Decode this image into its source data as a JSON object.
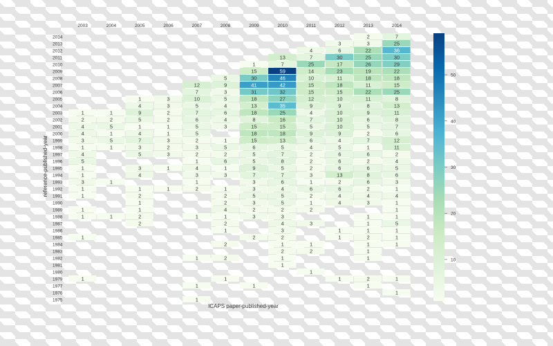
{
  "chart_data": {
    "type": "heatmap",
    "xlabel": "ICAPS paper-published-year",
    "ylabel": "reference-published-year",
    "x_categories": [
      "2003",
      "2004",
      "2005",
      "2006",
      "2007",
      "2008",
      "2009",
      "2010",
      "2011",
      "2012",
      "2013",
      "2014"
    ],
    "y_categories": [
      "2014",
      "2013",
      "2012",
      "2011",
      "2010",
      "2009",
      "2008",
      "2007",
      "2006",
      "2005",
      "2004",
      "2003",
      "2002",
      "2001",
      "2000",
      "1999",
      "1998",
      "1997",
      "1996",
      "1995",
      "1994",
      "1993",
      "1992",
      "1991",
      "1990",
      "1989",
      "1988",
      "1987",
      "1986",
      "1985",
      "1984",
      "1983",
      "1982",
      "1981",
      "1980",
      "1979",
      "1977",
      "1976",
      "1975"
    ],
    "values": [
      [
        null,
        null,
        null,
        null,
        null,
        null,
        null,
        null,
        null,
        null,
        2,
        7
      ],
      [
        null,
        null,
        null,
        null,
        null,
        null,
        null,
        null,
        null,
        3,
        3,
        25
      ],
      [
        null,
        null,
        null,
        null,
        null,
        null,
        null,
        null,
        4,
        6,
        22,
        36
      ],
      [
        null,
        null,
        null,
        null,
        null,
        null,
        null,
        13,
        7,
        30,
        25,
        30
      ],
      [
        null,
        null,
        null,
        null,
        null,
        null,
        1,
        7,
        25,
        17,
        26,
        29
      ],
      [
        null,
        null,
        null,
        null,
        null,
        null,
        15,
        59,
        14,
        23,
        19,
        22
      ],
      [
        null,
        null,
        null,
        null,
        null,
        5,
        30,
        46,
        10,
        11,
        18,
        18
      ],
      [
        null,
        null,
        null,
        null,
        12,
        9,
        41,
        42,
        15,
        18,
        11,
        15
      ],
      [
        null,
        null,
        null,
        null,
        7,
        3,
        31,
        32,
        15,
        15,
        22,
        25
      ],
      [
        null,
        null,
        1,
        3,
        10,
        5,
        18,
        27,
        12,
        10,
        11,
        8
      ],
      [
        null,
        null,
        4,
        3,
        5,
        4,
        13,
        35,
        9,
        9,
        8,
        13
      ],
      [
        1,
        1,
        9,
        2,
        7,
        6,
        18,
        25,
        4,
        10,
        9,
        11
      ],
      [
        2,
        2,
        5,
        2,
        6,
        4,
        8,
        16,
        7,
        10,
        6,
        8
      ],
      [
        4,
        5,
        1,
        1,
        5,
        3,
        15,
        15,
        5,
        10,
        5,
        7
      ],
      [
        4,
        1,
        4,
        1,
        5,
        null,
        18,
        18,
        9,
        9,
        2,
        6
      ],
      [
        3,
        5,
        7,
        3,
        2,
        1,
        15,
        13,
        6,
        4,
        7,
        12
      ],
      [
        1,
        1,
        3,
        2,
        3,
        5,
        6,
        5,
        4,
        5,
        1,
        11
      ],
      [
        4,
        null,
        5,
        3,
        2,
        2,
        5,
        7,
        2,
        6,
        6,
        2
      ],
      [
        5,
        null,
        null,
        null,
        1,
        6,
        5,
        8,
        2,
        6,
        2,
        4
      ],
      [
        1,
        null,
        3,
        1,
        4,
        1,
        9,
        5,
        2,
        6,
        6,
        5
      ],
      [
        1,
        null,
        4,
        null,
        3,
        3,
        7,
        7,
        3,
        13,
        8,
        6
      ],
      [
        3,
        1,
        null,
        null,
        1,
        null,
        3,
        6,
        1,
        2,
        6,
        3
      ],
      [
        1,
        null,
        1,
        1,
        2,
        1,
        3,
        4,
        6,
        6,
        2,
        1
      ],
      [
        1,
        null,
        2,
        null,
        null,
        2,
        5,
        5,
        2,
        4,
        4,
        4
      ],
      [
        null,
        null,
        1,
        null,
        null,
        2,
        3,
        5,
        1,
        4,
        3,
        1
      ],
      [
        1,
        null,
        1,
        null,
        null,
        4,
        2,
        2,
        2,
        null,
        null,
        1
      ],
      [
        1,
        1,
        2,
        null,
        1,
        1,
        3,
        3,
        null,
        null,
        1,
        1
      ],
      [
        null,
        null,
        2,
        null,
        null,
        2,
        null,
        4,
        3,
        null,
        1,
        5
      ],
      [
        null,
        null,
        null,
        null,
        null,
        1,
        null,
        3,
        null,
        1,
        1,
        1
      ],
      [
        1,
        null,
        null,
        null,
        null,
        null,
        2,
        2,
        null,
        1,
        2,
        1
      ],
      [
        null,
        null,
        null,
        null,
        null,
        2,
        null,
        1,
        1,
        null,
        1,
        1
      ],
      [
        null,
        null,
        null,
        null,
        null,
        null,
        null,
        2,
        2,
        null,
        1,
        null
      ],
      [
        null,
        null,
        null,
        null,
        1,
        2,
        null,
        1,
        null,
        null,
        1,
        null
      ],
      [
        null,
        null,
        null,
        null,
        null,
        null,
        null,
        1,
        null,
        null,
        null,
        null
      ],
      [
        null,
        null,
        null,
        null,
        null,
        null,
        null,
        null,
        1,
        null,
        null,
        null
      ],
      [
        1,
        null,
        null,
        null,
        null,
        1,
        null,
        null,
        null,
        1,
        2,
        1
      ],
      [
        null,
        null,
        null,
        null,
        1,
        null,
        1,
        null,
        null,
        null,
        1,
        null
      ],
      [
        null,
        null,
        null,
        null,
        null,
        null,
        null,
        null,
        null,
        null,
        null,
        1
      ],
      [
        null,
        null,
        null,
        null,
        1,
        null,
        null,
        null,
        null,
        null,
        null,
        null
      ]
    ],
    "colormap": "GnBu",
    "colorbar": {
      "range": [
        1,
        59
      ],
      "ticks": [
        "10",
        "20",
        "30",
        "40",
        "50"
      ],
      "placement": "right"
    },
    "annotated": true
  }
}
